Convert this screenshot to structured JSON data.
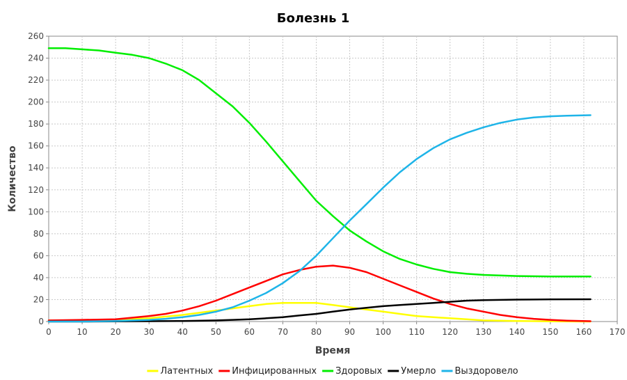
{
  "chart_data": {
    "type": "line",
    "title": "Болезнь 1",
    "xlabel": "Время",
    "ylabel": "Количество",
    "xlim": [
      0,
      170
    ],
    "ylim": [
      0,
      260
    ],
    "xticks": [
      0,
      10,
      20,
      30,
      40,
      50,
      60,
      70,
      80,
      90,
      100,
      110,
      120,
      130,
      140,
      150,
      160,
      170
    ],
    "yticks": [
      0,
      20,
      40,
      60,
      80,
      100,
      120,
      140,
      160,
      180,
      200,
      220,
      240,
      260
    ],
    "grid": true,
    "legend_position": "bottom",
    "series": [
      {
        "name": "Латентных",
        "color": "#ffff00",
        "points": [
          [
            0,
            1
          ],
          [
            10,
            1
          ],
          [
            20,
            1.5
          ],
          [
            30,
            3
          ],
          [
            40,
            6
          ],
          [
            50,
            10
          ],
          [
            55,
            12
          ],
          [
            60,
            14
          ],
          [
            65,
            16
          ],
          [
            70,
            17
          ],
          [
            75,
            17
          ],
          [
            80,
            17
          ],
          [
            85,
            15
          ],
          [
            90,
            13
          ],
          [
            95,
            11
          ],
          [
            100,
            9
          ],
          [
            105,
            7
          ],
          [
            110,
            5
          ],
          [
            115,
            4
          ],
          [
            120,
            3
          ],
          [
            125,
            2
          ],
          [
            130,
            1
          ],
          [
            140,
            0.5
          ],
          [
            150,
            0.2
          ],
          [
            162,
            0
          ]
        ]
      },
      {
        "name": "Инфицированных",
        "color": "#ff0000",
        "points": [
          [
            0,
            1
          ],
          [
            10,
            1.5
          ],
          [
            20,
            2
          ],
          [
            30,
            5
          ],
          [
            35,
            7
          ],
          [
            40,
            10
          ],
          [
            45,
            14
          ],
          [
            50,
            19
          ],
          [
            55,
            25
          ],
          [
            60,
            31
          ],
          [
            65,
            37
          ],
          [
            70,
            43
          ],
          [
            75,
            47
          ],
          [
            80,
            50
          ],
          [
            85,
            51
          ],
          [
            90,
            49
          ],
          [
            95,
            45
          ],
          [
            100,
            39
          ],
          [
            105,
            33
          ],
          [
            110,
            27
          ],
          [
            115,
            21
          ],
          [
            120,
            16
          ],
          [
            125,
            12
          ],
          [
            130,
            9
          ],
          [
            135,
            6
          ],
          [
            140,
            4
          ],
          [
            145,
            2.5
          ],
          [
            150,
            1.5
          ],
          [
            155,
            0.8
          ],
          [
            162,
            0.3
          ]
        ]
      },
      {
        "name": "Здоровых",
        "color": "#00ee00",
        "points": [
          [
            0,
            249
          ],
          [
            5,
            249
          ],
          [
            10,
            248
          ],
          [
            15,
            247
          ],
          [
            20,
            245
          ],
          [
            25,
            243
          ],
          [
            30,
            240
          ],
          [
            35,
            235
          ],
          [
            40,
            229
          ],
          [
            45,
            220
          ],
          [
            50,
            208
          ],
          [
            55,
            196
          ],
          [
            60,
            181
          ],
          [
            65,
            164
          ],
          [
            70,
            146
          ],
          [
            75,
            128
          ],
          [
            80,
            110
          ],
          [
            85,
            96
          ],
          [
            90,
            83
          ],
          [
            95,
            73
          ],
          [
            100,
            64
          ],
          [
            105,
            57
          ],
          [
            110,
            52
          ],
          [
            115,
            48
          ],
          [
            120,
            45
          ],
          [
            125,
            43.5
          ],
          [
            130,
            42.5
          ],
          [
            140,
            41.5
          ],
          [
            150,
            41
          ],
          [
            162,
            41
          ]
        ]
      },
      {
        "name": "Умерло",
        "color": "#000000",
        "points": [
          [
            0,
            0
          ],
          [
            10,
            0
          ],
          [
            20,
            0.2
          ],
          [
            30,
            0.3
          ],
          [
            40,
            0.5
          ],
          [
            50,
            1
          ],
          [
            55,
            1.5
          ],
          [
            60,
            2
          ],
          [
            65,
            3
          ],
          [
            70,
            4
          ],
          [
            75,
            5.5
          ],
          [
            80,
            7
          ],
          [
            85,
            9
          ],
          [
            90,
            11
          ],
          [
            95,
            12.5
          ],
          [
            100,
            14
          ],
          [
            105,
            15
          ],
          [
            110,
            16
          ],
          [
            115,
            17
          ],
          [
            120,
            18
          ],
          [
            125,
            19
          ],
          [
            130,
            19.5
          ],
          [
            140,
            20
          ],
          [
            150,
            20.2
          ],
          [
            162,
            20.3
          ]
        ]
      },
      {
        "name": "Выздоровело",
        "color": "#1eb4e8",
        "points": [
          [
            0,
            0
          ],
          [
            10,
            0
          ],
          [
            20,
            0.5
          ],
          [
            30,
            1.5
          ],
          [
            35,
            2.5
          ],
          [
            40,
            4
          ],
          [
            45,
            6
          ],
          [
            50,
            9
          ],
          [
            55,
            13
          ],
          [
            60,
            19
          ],
          [
            65,
            26
          ],
          [
            70,
            35
          ],
          [
            75,
            46
          ],
          [
            80,
            60
          ],
          [
            85,
            76
          ],
          [
            90,
            92
          ],
          [
            95,
            107
          ],
          [
            100,
            122
          ],
          [
            105,
            136
          ],
          [
            110,
            148
          ],
          [
            115,
            158
          ],
          [
            120,
            166
          ],
          [
            125,
            172
          ],
          [
            130,
            177
          ],
          [
            135,
            181
          ],
          [
            140,
            184
          ],
          [
            145,
            186
          ],
          [
            150,
            187
          ],
          [
            155,
            187.5
          ],
          [
            162,
            188
          ]
        ]
      }
    ]
  }
}
